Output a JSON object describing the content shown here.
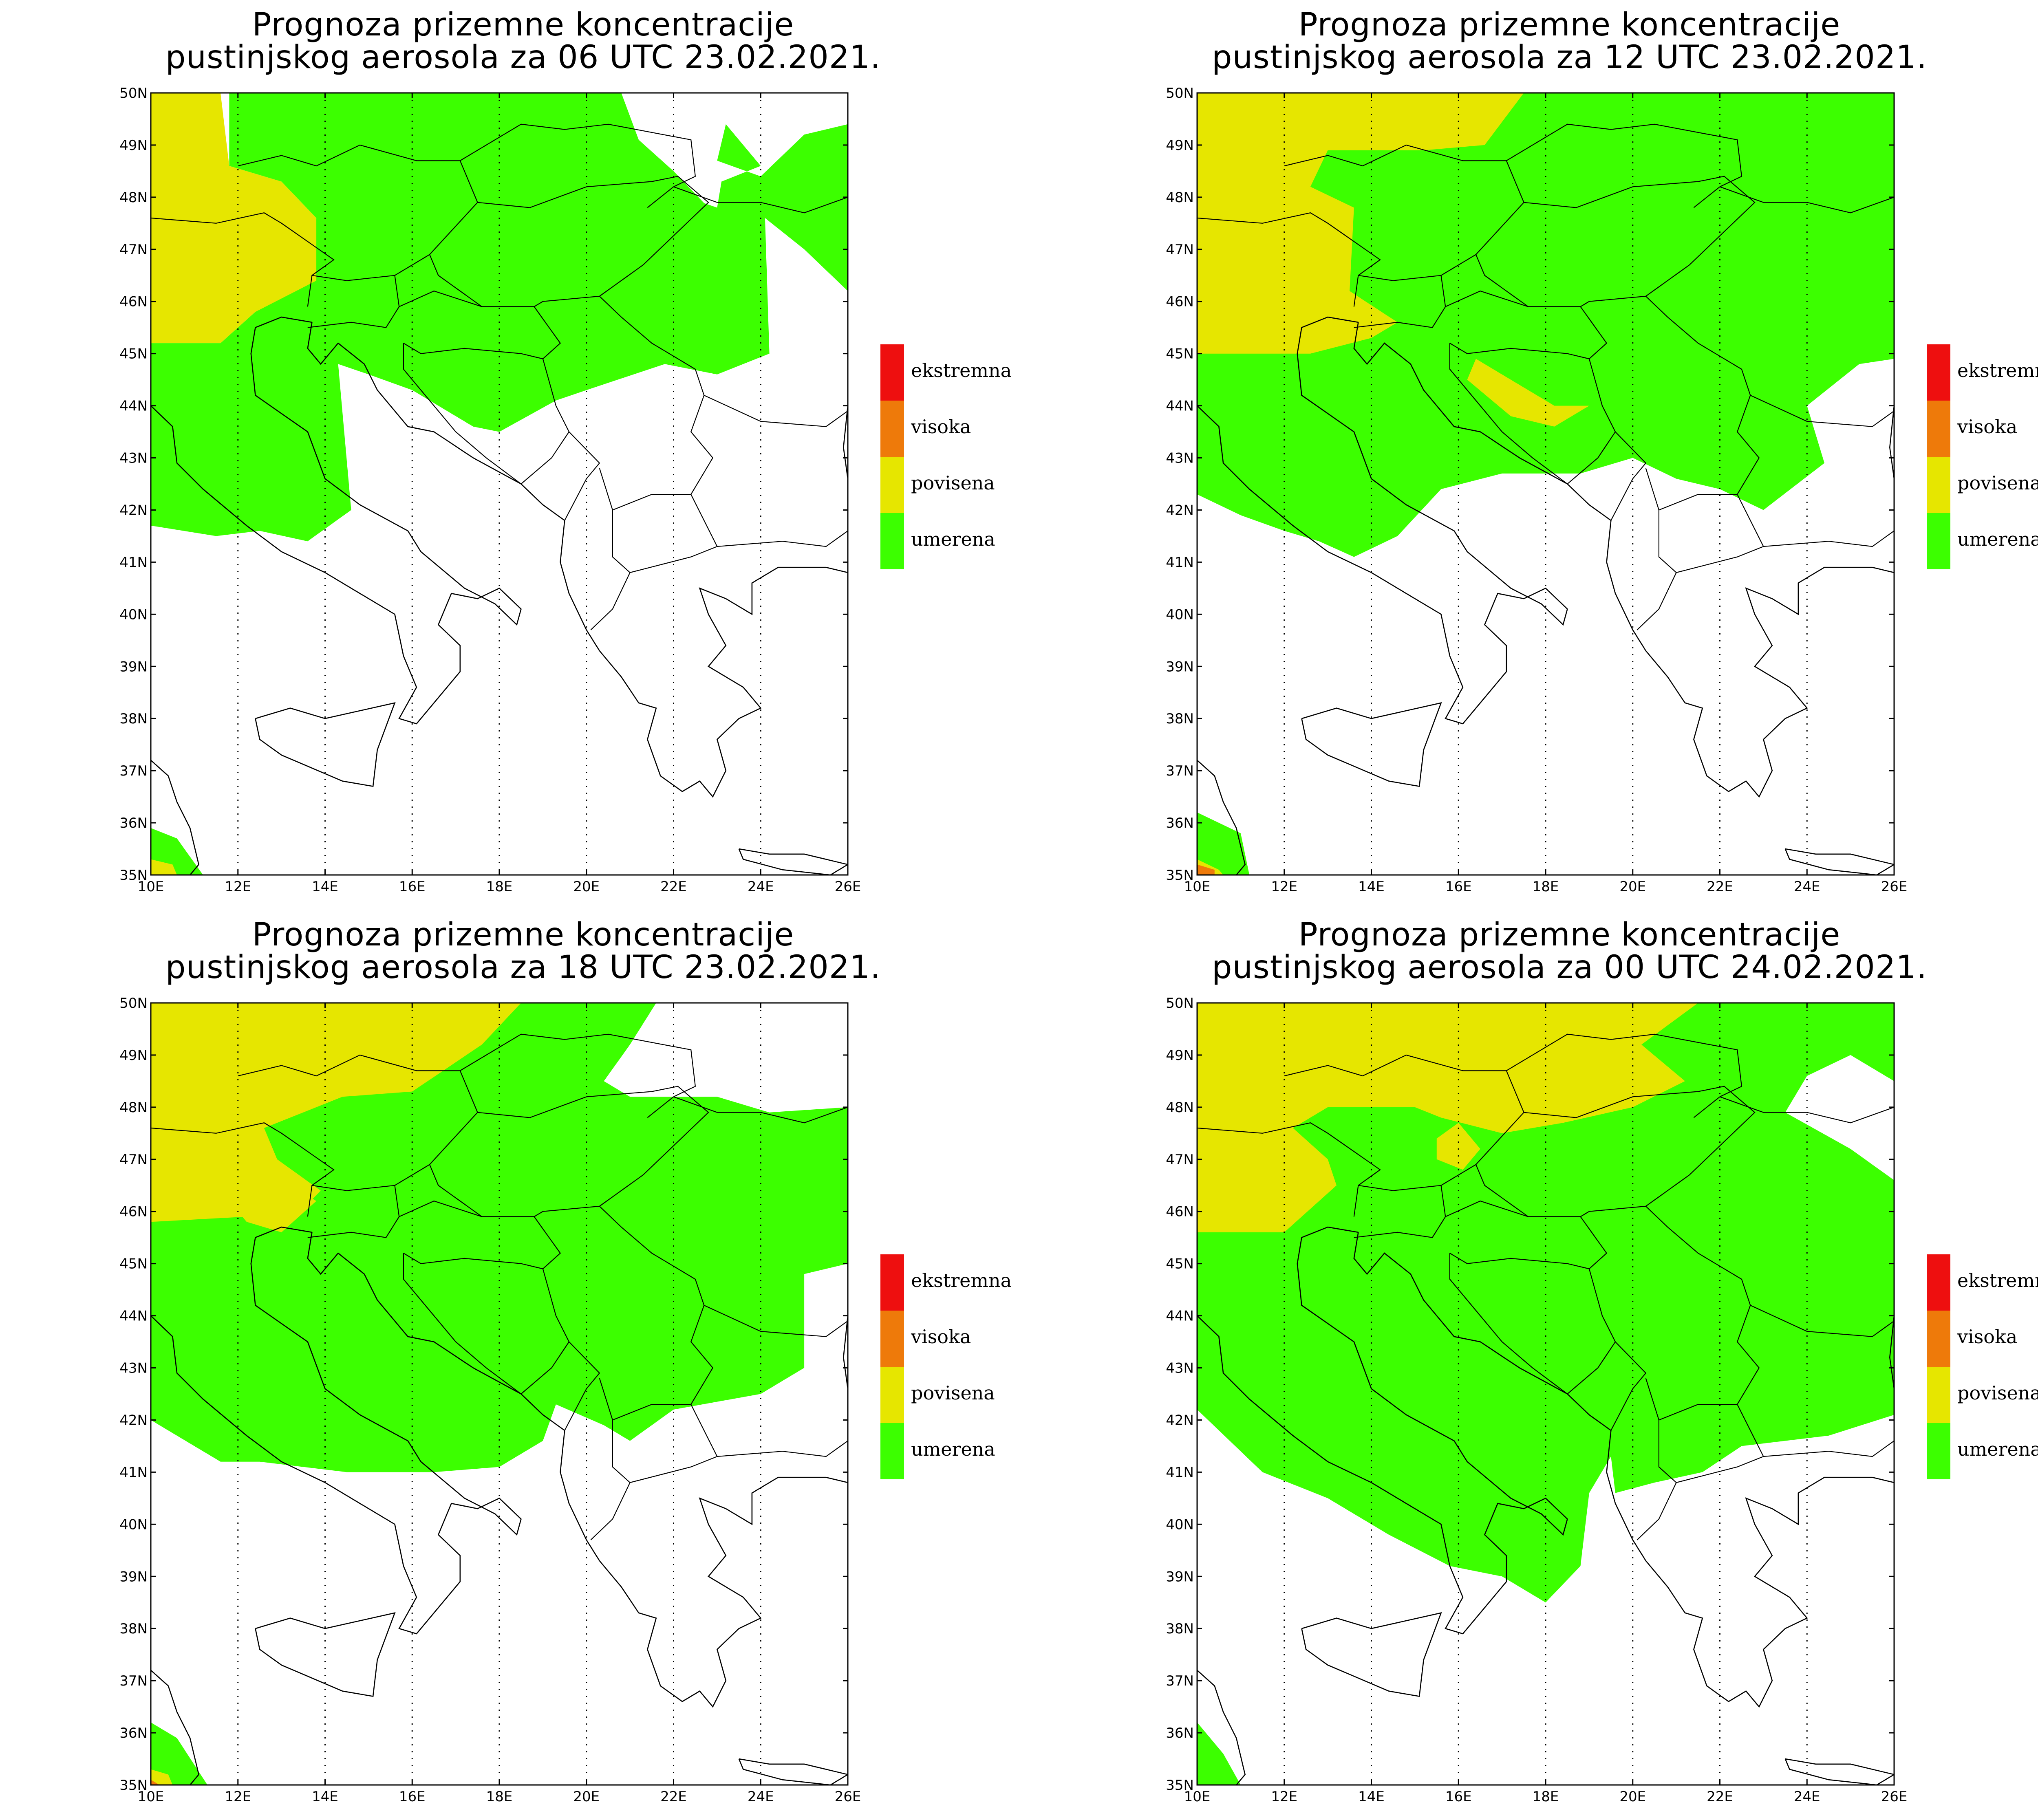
{
  "colors": {
    "umerena": "#3cff00",
    "povisena": "#e6e600",
    "visoka": "#ee7a0a",
    "ekstremna": "#ee0f0f",
    "background": "#ffffff",
    "coast": "#000000"
  },
  "legend": [
    {
      "key": "ekstremna",
      "label": "ekstremna"
    },
    {
      "key": "visoka",
      "label": "visoka"
    },
    {
      "key": "povisena",
      "label": "povisena"
    },
    {
      "key": "umerena",
      "label": "umerena"
    }
  ],
  "axes": {
    "lat_labels": [
      "35N",
      "36N",
      "37N",
      "38N",
      "39N",
      "40N",
      "41N",
      "42N",
      "43N",
      "44N",
      "45N",
      "46N",
      "47N",
      "48N",
      "49N",
      "50N"
    ],
    "lon_labels": [
      "10E",
      "12E",
      "14E",
      "16E",
      "18E",
      "20E",
      "22E",
      "24E",
      "26E"
    ],
    "lat_range": [
      35,
      50
    ],
    "lon_range": [
      10,
      26
    ]
  },
  "panels": [
    {
      "title_line1": "Prognoza prizemne koncentracije",
      "title_line2": "pustinjskog aerosola za 06 UTC 23.02.2021.",
      "regions": [
        {
          "level": "povisena",
          "lonlat": [
            [
              10,
              50
            ],
            [
              11.6,
              50
            ],
            [
              11.8,
              48.6
            ],
            [
              13.0,
              48.3
            ],
            [
              13.8,
              47.6
            ],
            [
              14.0,
              46.4
            ],
            [
              12.4,
              45.8
            ],
            [
              11.6,
              45.2
            ],
            [
              10,
              45.2
            ]
          ]
        },
        {
          "level": "umerena",
          "lonlat": [
            [
              11.8,
              50
            ],
            [
              20.8,
              50
            ],
            [
              21.2,
              49.1
            ],
            [
              22.0,
              48.5
            ],
            [
              22.8,
              47.8
            ],
            [
              21.8,
              46.8
            ],
            [
              22.3,
              48.0
            ],
            [
              23.0,
              47.8
            ],
            [
              23.1,
              48.3
            ],
            [
              24.0,
              48.6
            ],
            [
              23.2,
              49.4
            ],
            [
              23.0,
              48.7
            ],
            [
              24.0,
              48.4
            ],
            [
              25.0,
              49.2
            ],
            [
              26,
              49.4
            ],
            [
              26,
              46.2
            ],
            [
              25.0,
              47.0
            ],
            [
              24.1,
              47.6
            ],
            [
              24.2,
              45.0
            ],
            [
              23.0,
              44.6
            ],
            [
              21.8,
              44.8
            ],
            [
              20.0,
              44.3
            ],
            [
              19.3,
              44.1
            ],
            [
              18.0,
              43.5
            ],
            [
              17.4,
              43.6
            ],
            [
              16.0,
              44.3
            ],
            [
              15.0,
              44.6
            ],
            [
              14.3,
              44.8
            ],
            [
              14.6,
              42.0
            ],
            [
              13.6,
              41.4
            ],
            [
              12.5,
              41.6
            ],
            [
              11.5,
              41.5
            ],
            [
              10,
              41.7
            ],
            [
              10,
              45.2
            ],
            [
              11.6,
              45.2
            ],
            [
              12.4,
              45.8
            ],
            [
              13.8,
              46.4
            ],
            [
              13.8,
              47.6
            ],
            [
              13.0,
              48.3
            ],
            [
              11.8,
              48.6
            ]
          ]
        },
        {
          "level": "umerena",
          "lonlat": [
            [
              10,
              35.9
            ],
            [
              10.6,
              35.7
            ],
            [
              11.2,
              35.0
            ],
            [
              10,
              35.0
            ]
          ]
        },
        {
          "level": "povisena",
          "lonlat": [
            [
              10,
              35.3
            ],
            [
              10.5,
              35.2
            ],
            [
              10.6,
              35.0
            ],
            [
              10,
              35.0
            ]
          ]
        }
      ]
    },
    {
      "title_line1": "Prognoza prizemne koncentracije",
      "title_line2": "pustinjskog aerosola za 12 UTC 23.02.2021.",
      "regions": [
        {
          "level": "umerena",
          "lonlat": [
            [
              10,
              50
            ],
            [
              26,
              50
            ],
            [
              26,
              44.9
            ],
            [
              25.2,
              44.8
            ],
            [
              24.0,
              44.0
            ],
            [
              24.4,
              42.9
            ],
            [
              23.0,
              42.0
            ],
            [
              22.0,
              42.4
            ],
            [
              21.0,
              42.6
            ],
            [
              20.0,
              43.0
            ],
            [
              18.8,
              42.7
            ],
            [
              17.0,
              42.7
            ],
            [
              15.6,
              42.4
            ],
            [
              14.6,
              41.5
            ],
            [
              13.6,
              41.1
            ],
            [
              12.8,
              41.4
            ],
            [
              12.0,
              41.6
            ],
            [
              11.0,
              41.9
            ],
            [
              10,
              42.3
            ]
          ]
        },
        {
          "level": "umerena",
          "lonlat": [
            [
              10,
              36.2
            ],
            [
              11.0,
              35.8
            ],
            [
              11.2,
              35.0
            ],
            [
              10,
              35.0
            ]
          ]
        },
        {
          "level": "povisena",
          "lonlat": [
            [
              10,
              50
            ],
            [
              17.5,
              50
            ],
            [
              16.6,
              49.0
            ],
            [
              15.2,
              48.9
            ],
            [
              13.0,
              48.9
            ],
            [
              12.6,
              48.2
            ],
            [
              13.6,
              47.8
            ],
            [
              13.5,
              46.2
            ],
            [
              14.6,
              45.6
            ],
            [
              14.0,
              45.3
            ],
            [
              12.6,
              45.0
            ],
            [
              10,
              45.0
            ]
          ]
        },
        {
          "level": "povisena",
          "lonlat": [
            [
              16.4,
              44.9
            ],
            [
              17.8,
              44.2
            ],
            [
              18.2,
              44.0
            ],
            [
              19.0,
              44.0
            ],
            [
              18.2,
              43.6
            ],
            [
              17.2,
              43.8
            ],
            [
              16.2,
              44.5
            ]
          ]
        },
        {
          "level": "povisena",
          "lonlat": [
            [
              10,
              35.3
            ],
            [
              10.5,
              35.1
            ],
            [
              10.6,
              35.0
            ],
            [
              10,
              35.0
            ]
          ]
        },
        {
          "level": "visoka",
          "lonlat": [
            [
              10,
              35.2
            ],
            [
              10.4,
              35.1
            ],
            [
              10.4,
              35.0
            ],
            [
              10,
              35.0
            ]
          ]
        }
      ]
    },
    {
      "title_line1": "Prognoza prizemne koncentracije",
      "title_line2": "pustinjskog aerosola za 18 UTC 23.02.2021.",
      "regions": [
        {
          "level": "umerena",
          "lonlat": [
            [
              10,
              50
            ],
            [
              21.6,
              50
            ],
            [
              21.0,
              49.2
            ],
            [
              20.4,
              48.5
            ],
            [
              21.0,
              48.2
            ],
            [
              23.0,
              48.2
            ],
            [
              24.2,
              47.9
            ],
            [
              26,
              48.0
            ],
            [
              26,
              45.0
            ],
            [
              25.0,
              44.8
            ],
            [
              25.0,
              43.0
            ],
            [
              24.0,
              42.5
            ],
            [
              22.0,
              42.2
            ],
            [
              21.0,
              41.6
            ],
            [
              20.4,
              41.9
            ],
            [
              19.3,
              42.3
            ],
            [
              19.0,
              41.6
            ],
            [
              18.0,
              41.1
            ],
            [
              16.5,
              41.0
            ],
            [
              14.5,
              41.0
            ],
            [
              12.5,
              41.2
            ],
            [
              11.6,
              41.2
            ],
            [
              10,
              42.0
            ]
          ]
        },
        {
          "level": "umerena",
          "lonlat": [
            [
              10,
              36.2
            ],
            [
              10.6,
              35.9
            ],
            [
              11.3,
              35.0
            ],
            [
              10,
              35.0
            ]
          ]
        },
        {
          "level": "povisena",
          "lonlat": [
            [
              10,
              50
            ],
            [
              18.5,
              50
            ],
            [
              17.6,
              49.2
            ],
            [
              16.0,
              48.3
            ],
            [
              14.4,
              48.2
            ],
            [
              12.6,
              47.6
            ],
            [
              12.9,
              47.0
            ],
            [
              13.9,
              46.4
            ],
            [
              13.2,
              45.8
            ],
            [
              12.2,
              45.9
            ],
            [
              10,
              45.8
            ]
          ]
        },
        {
          "level": "povisena",
          "lonlat": [
            [
              12.0,
              46.0
            ],
            [
              12.4,
              46.5
            ],
            [
              13.0,
              46.6
            ],
            [
              13.8,
              46.2
            ],
            [
              13.0,
              45.6
            ],
            [
              12.2,
              45.8
            ]
          ]
        },
        {
          "level": "povisena",
          "lonlat": [
            [
              10,
              35.3
            ],
            [
              10.4,
              35.2
            ],
            [
              10.5,
              35.0
            ],
            [
              10,
              35.0
            ]
          ]
        },
        {
          "level": "visoka",
          "lonlat": [
            [
              10,
              35.1
            ],
            [
              10.2,
              35.0
            ],
            [
              10,
              35.0
            ]
          ]
        }
      ]
    },
    {
      "title_line1": "Prognoza prizemne koncentracije",
      "title_line2": "pustinjskog aerosola za 00 UTC 24.02.2021.",
      "regions": [
        {
          "level": "umerena",
          "lonlat": [
            [
              10,
              50
            ],
            [
              26,
              50
            ],
            [
              26,
              48.5
            ],
            [
              25.0,
              49.0
            ],
            [
              24.0,
              48.6
            ],
            [
              23.5,
              47.9
            ],
            [
              25.0,
              47.2
            ],
            [
              26,
              46.6
            ],
            [
              26,
              42.1
            ],
            [
              24.5,
              41.7
            ],
            [
              22.5,
              41.5
            ],
            [
              21.6,
              41.0
            ],
            [
              20.5,
              40.8
            ],
            [
              19.6,
              40.6
            ],
            [
              19.5,
              41.3
            ],
            [
              19.0,
              40.6
            ],
            [
              18.8,
              39.2
            ],
            [
              18.0,
              38.5
            ],
            [
              17.0,
              39.0
            ],
            [
              15.8,
              39.2
            ],
            [
              14.4,
              39.8
            ],
            [
              13.0,
              40.5
            ],
            [
              11.5,
              41.0
            ],
            [
              10,
              42.2
            ]
          ]
        },
        {
          "level": "umerena",
          "lonlat": [
            [
              10,
              36.2
            ],
            [
              10.6,
              35.6
            ],
            [
              11.0,
              35.0
            ],
            [
              10,
              35.0
            ]
          ]
        },
        {
          "level": "povisena",
          "lonlat": [
            [
              10,
              50
            ],
            [
              21.5,
              50
            ],
            [
              20.2,
              49.2
            ],
            [
              21.2,
              48.5
            ],
            [
              20.0,
              48.0
            ],
            [
              18.4,
              47.7
            ],
            [
              17.0,
              47.5
            ],
            [
              15.6,
              47.8
            ],
            [
              15.0,
              48.0
            ],
            [
              13.0,
              48.0
            ],
            [
              12.2,
              47.6
            ],
            [
              13.0,
              47.0
            ],
            [
              13.2,
              46.5
            ],
            [
              12.0,
              45.6
            ],
            [
              10,
              45.6
            ]
          ]
        },
        {
          "level": "povisena",
          "lonlat": [
            [
              15.5,
              47.4
            ],
            [
              16.0,
              47.7
            ],
            [
              16.5,
              47.2
            ],
            [
              16.1,
              46.8
            ],
            [
              15.5,
              47.0
            ]
          ]
        }
      ]
    }
  ]
}
